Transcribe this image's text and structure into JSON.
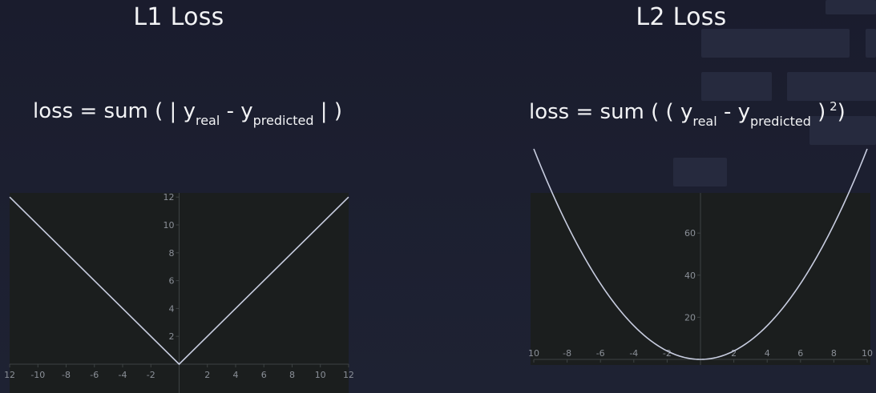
{
  "titles": {
    "l1": "L1 Loss",
    "l2": "L2 Loss"
  },
  "formulas": {
    "l1": {
      "prefix": "loss = sum ( | y",
      "sub1": "real",
      "mid": " - y",
      "sub2": "predicted",
      "suffix": " | )"
    },
    "l2": {
      "prefix": "loss = sum ( ( y",
      "sub1": "real",
      "mid": " - y",
      "sub2": "predicted",
      "close": " )",
      "sup": " 2",
      "suffix": ")"
    }
  },
  "colors": {
    "plot_bg": "#1b1e1e",
    "curve": "#c8cde0",
    "axis": "#3e4344",
    "tick_text": "#8b9098"
  },
  "chart_data": [
    {
      "type": "line",
      "function": "abs(x)",
      "xlim": [
        -12,
        12
      ],
      "ylim": [
        0,
        12
      ],
      "x": [
        -12,
        0,
        12
      ],
      "y": [
        12,
        0,
        12
      ],
      "xticks": [
        "12",
        "-10",
        "-8",
        "-6",
        "-4",
        "-2",
        "2",
        "4",
        "6",
        "8",
        "10",
        "12"
      ],
      "yticks": [
        "2",
        "4",
        "6",
        "8",
        "10",
        "12"
      ],
      "grid": false
    },
    {
      "type": "line",
      "function": "x^2",
      "xlim": [
        -10,
        10
      ],
      "ylim": [
        -4,
        80
      ],
      "x": [
        -10,
        -8,
        -6,
        -4,
        -2,
        0,
        2,
        4,
        6,
        8,
        10
      ],
      "y": [
        100,
        64,
        36,
        16,
        4,
        0,
        4,
        16,
        36,
        64,
        100
      ],
      "xticks": [
        "10",
        "-8",
        "-6",
        "-4",
        "-2",
        "2",
        "4",
        "6",
        "8",
        "10"
      ],
      "yticks": [
        "20",
        "40",
        "60"
      ],
      "grid": false
    }
  ]
}
